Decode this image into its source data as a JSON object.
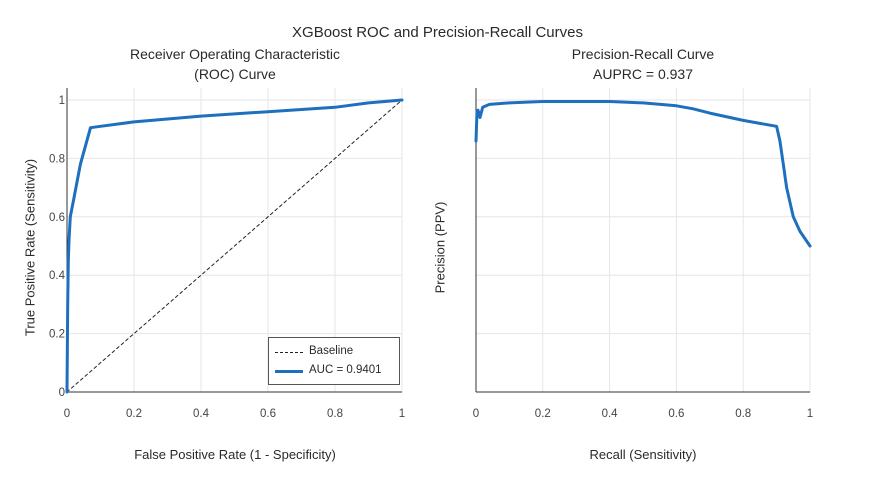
{
  "title": "XGBoost ROC and Precision-Recall Curves",
  "roc": {
    "subtitle_line1": "Receiver Operating Characteristic",
    "subtitle_line2": "(ROC) Curve",
    "xlabel": "False Positive Rate (1 - Specificity)",
    "ylabel": "True Positive Rate (Sensitivity)",
    "legend": {
      "baseline": "Baseline",
      "auc": "AUC = 0.9401"
    }
  },
  "pr": {
    "subtitle_line1": "Precision-Recall Curve",
    "subtitle_line2": "AUPRC = 0.937",
    "xlabel": "Recall (Sensitivity)",
    "ylabel": "Precision (PPV)"
  },
  "colors": {
    "curve": "#1f6fbf",
    "baseline": "#222222",
    "grid": "#e6e6e6",
    "axis": "#333333"
  },
  "chart_data": [
    {
      "type": "line",
      "title": "Receiver Operating Characteristic (ROC) Curve",
      "xlabel": "False Positive Rate (1 - Specificity)",
      "ylabel": "True Positive Rate (Sensitivity)",
      "xlim": [
        0,
        1
      ],
      "ylim": [
        0,
        1
      ],
      "xticks": [
        "0",
        "0.2",
        "0.4",
        "0.6",
        "0.8",
        "1"
      ],
      "yticks": [
        "0",
        "0.2",
        "0.4",
        "0.6",
        "0.8",
        "1"
      ],
      "grid": true,
      "legend": "bottom-right",
      "series": [
        {
          "name": "Baseline",
          "style": "dashed",
          "x": [
            0,
            1
          ],
          "y": [
            0,
            1
          ]
        },
        {
          "name": "AUC = 0.9401",
          "style": "solid",
          "x": [
            0,
            0.002,
            0.004,
            0.006,
            0.01,
            0.02,
            0.04,
            0.07,
            0.1,
            0.2,
            0.4,
            0.6,
            0.8,
            0.9,
            1.0
          ],
          "y": [
            0,
            0.3,
            0.45,
            0.52,
            0.6,
            0.66,
            0.78,
            0.905,
            0.91,
            0.925,
            0.945,
            0.96,
            0.975,
            0.99,
            1.0
          ]
        }
      ]
    },
    {
      "type": "line",
      "title": "Precision-Recall Curve",
      "subtitle": "AUPRC = 0.937",
      "xlabel": "Recall (Sensitivity)",
      "ylabel": "Precision (PPV)",
      "xlim": [
        0,
        1
      ],
      "ylim": [
        0,
        1
      ],
      "xticks": [
        "0",
        "0.2",
        "0.4",
        "0.6",
        "0.8",
        "1"
      ],
      "grid": true,
      "series": [
        {
          "x": [
            0,
            0.003,
            0.006,
            0.012,
            0.02,
            0.04,
            0.1,
            0.2,
            0.3,
            0.4,
            0.5,
            0.6,
            0.65,
            0.7,
            0.8,
            0.85,
            0.9,
            0.91,
            0.92,
            0.93,
            0.95,
            0.97,
            1.0
          ],
          "y": [
            0.86,
            0.96,
            0.965,
            0.94,
            0.975,
            0.985,
            0.99,
            0.995,
            0.995,
            0.995,
            0.99,
            0.98,
            0.97,
            0.955,
            0.93,
            0.92,
            0.91,
            0.86,
            0.78,
            0.7,
            0.6,
            0.55,
            0.5
          ]
        }
      ]
    }
  ]
}
